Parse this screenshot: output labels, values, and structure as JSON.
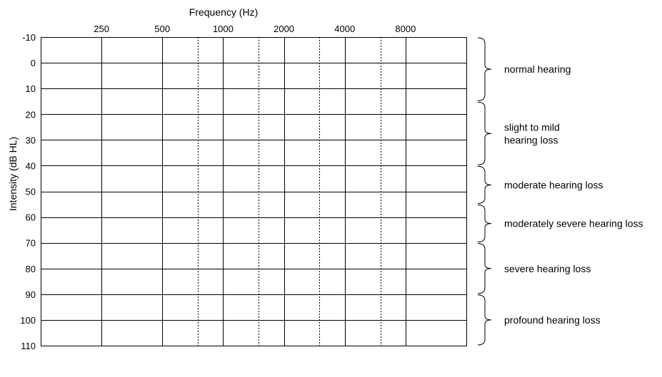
{
  "chart_data": {
    "type": "audiogram",
    "xlabel": "Frequency (Hz)",
    "ylabel": "Intensity (dB HL)",
    "x_ticks": [
      "250",
      "500",
      "1000",
      "2000",
      "4000",
      "8000"
    ],
    "x_minor_ticks": [
      "750",
      "1500",
      "3000",
      "6000"
    ],
    "y_ticks": [
      "-10",
      "0",
      "10",
      "20",
      "30",
      "40",
      "50",
      "60",
      "70",
      "80",
      "90",
      "100",
      "110"
    ],
    "ylim": [
      -10,
      110
    ],
    "y_inverted": true,
    "grid": true,
    "bands": [
      {
        "label": [
          "normal hearing"
        ],
        "from": -10,
        "to": 15
      },
      {
        "label": [
          "slight to mild",
          "hearing loss"
        ],
        "from": 15,
        "to": 40
      },
      {
        "label": [
          "moderate hearing loss"
        ],
        "from": 40,
        "to": 55
      },
      {
        "label": [
          "moderately severe hearing loss"
        ],
        "from": 55,
        "to": 70
      },
      {
        "label": [
          "severe hearing loss"
        ],
        "from": 70,
        "to": 90
      },
      {
        "label": [
          "profound hearing loss"
        ],
        "from": 90,
        "to": 110
      }
    ]
  }
}
